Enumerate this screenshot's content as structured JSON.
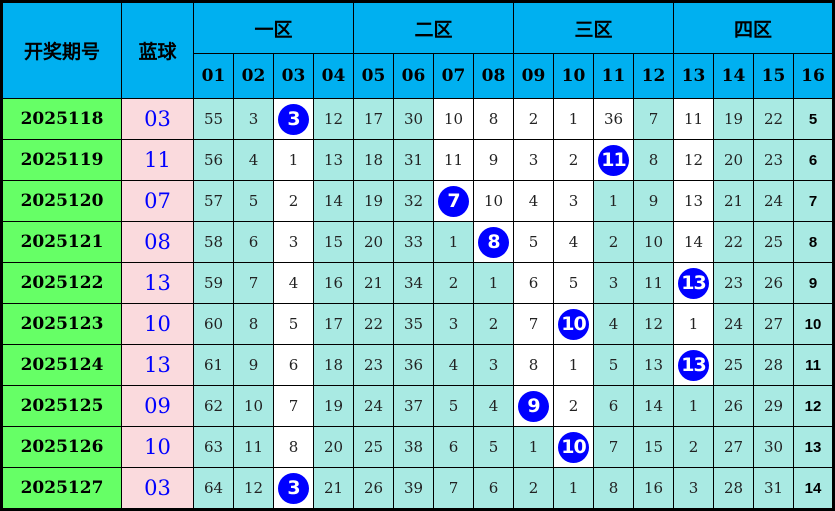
{
  "header": {
    "period_label": "开奖期号",
    "blue_label": "蓝球",
    "zones": [
      "一区",
      "二区",
      "三区",
      "四区"
    ],
    "columns": [
      "01",
      "02",
      "03",
      "04",
      "05",
      "06",
      "07",
      "08",
      "09",
      "10",
      "11",
      "12",
      "13",
      "14",
      "15",
      "16"
    ]
  },
  "colors": {
    "header": "#00b0f0",
    "period": "#66ff66",
    "blue_cell": "#fadadd",
    "cell": "#a9eae3",
    "highlight": "#ffffff",
    "ball": "#0000ff"
  },
  "rows": [
    {
      "period": "2025118",
      "blue": "03",
      "values": [
        "55",
        "3",
        "3",
        "12",
        "17",
        "30",
        "10",
        "8",
        "2",
        "1",
        "36",
        "7",
        "11",
        "19",
        "22",
        "5"
      ],
      "hit": 3,
      "white": [
        3,
        7,
        8,
        9,
        10,
        11,
        13
      ]
    },
    {
      "period": "2025119",
      "blue": "11",
      "values": [
        "56",
        "4",
        "1",
        "13",
        "18",
        "31",
        "11",
        "9",
        "3",
        "2",
        "11",
        "8",
        "12",
        "20",
        "23",
        "6"
      ],
      "hit": 11,
      "white": [
        3,
        7,
        8,
        9,
        10,
        11,
        13
      ]
    },
    {
      "period": "2025120",
      "blue": "07",
      "values": [
        "57",
        "5",
        "2",
        "14",
        "19",
        "32",
        "7",
        "10",
        "4",
        "3",
        "1",
        "9",
        "13",
        "21",
        "24",
        "7"
      ],
      "hit": 7,
      "white": [
        3,
        7,
        8,
        9,
        10,
        13
      ]
    },
    {
      "period": "2025121",
      "blue": "08",
      "values": [
        "58",
        "6",
        "3",
        "15",
        "20",
        "33",
        "1",
        "8",
        "5",
        "4",
        "2",
        "10",
        "14",
        "22",
        "25",
        "8"
      ],
      "hit": 8,
      "white": [
        3,
        8,
        9,
        10,
        13
      ]
    },
    {
      "period": "2025122",
      "blue": "13",
      "values": [
        "59",
        "7",
        "4",
        "16",
        "21",
        "34",
        "2",
        "1",
        "6",
        "5",
        "3",
        "11",
        "13",
        "23",
        "26",
        "9"
      ],
      "hit": 13,
      "white": [
        3,
        9,
        10,
        13
      ]
    },
    {
      "period": "2025123",
      "blue": "10",
      "values": [
        "60",
        "8",
        "5",
        "17",
        "22",
        "35",
        "3",
        "2",
        "7",
        "10",
        "4",
        "12",
        "1",
        "24",
        "27",
        "10"
      ],
      "hit": 10,
      "white": [
        3,
        9,
        10,
        13
      ]
    },
    {
      "period": "2025124",
      "blue": "13",
      "values": [
        "61",
        "9",
        "6",
        "18",
        "23",
        "36",
        "4",
        "3",
        "8",
        "1",
        "5",
        "13",
        "13",
        "25",
        "28",
        "11"
      ],
      "hit": 13,
      "white": [
        3,
        9,
        10,
        13
      ]
    },
    {
      "period": "2025125",
      "blue": "09",
      "values": [
        "62",
        "10",
        "7",
        "19",
        "24",
        "37",
        "5",
        "4",
        "9",
        "2",
        "6",
        "14",
        "1",
        "26",
        "29",
        "12"
      ],
      "hit": 9,
      "white": [
        3,
        9,
        10
      ]
    },
    {
      "period": "2025126",
      "blue": "10",
      "values": [
        "63",
        "11",
        "8",
        "20",
        "25",
        "38",
        "6",
        "5",
        "1",
        "10",
        "7",
        "15",
        "2",
        "27",
        "30",
        "13"
      ],
      "hit": 10,
      "white": [
        3,
        10
      ]
    },
    {
      "period": "2025127",
      "blue": "03",
      "values": [
        "64",
        "12",
        "3",
        "21",
        "26",
        "39",
        "7",
        "6",
        "2",
        "1",
        "8",
        "16",
        "3",
        "28",
        "31",
        "14"
      ],
      "hit": 3,
      "white": [
        3
      ]
    }
  ]
}
